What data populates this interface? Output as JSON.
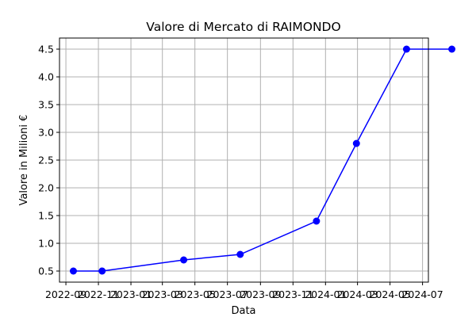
{
  "chart_data": {
    "type": "line",
    "title": "Valore di Mercato di RAIMONDO",
    "xlabel": "Data",
    "ylabel": "Valore in Milioni €",
    "x_ticks": [
      "2022-09",
      "2022-11",
      "2023-01",
      "2023-03",
      "2023-05",
      "2023-07",
      "2023-09",
      "2023-11",
      "2024-01",
      "2024-03",
      "2024-05",
      "2024-07"
    ],
    "y_ticks": [
      0.5,
      1.0,
      1.5,
      2.0,
      2.5,
      3.0,
      3.5,
      4.0,
      4.5
    ],
    "xlim": [
      "2022-08-20",
      "2024-07-12"
    ],
    "ylim": [
      0.3,
      4.7
    ],
    "grid": true,
    "series": [
      {
        "color": "#0000ff",
        "marker": "circle",
        "points": [
          {
            "x": "2022-09-15",
            "y": 0.5
          },
          {
            "x": "2022-11-08",
            "y": 0.5
          },
          {
            "x": "2023-04-10",
            "y": 0.7
          },
          {
            "x": "2023-07-25",
            "y": 0.8
          },
          {
            "x": "2023-12-15",
            "y": 1.4
          },
          {
            "x": "2024-02-28",
            "y": 2.8
          },
          {
            "x": "2024-06-01",
            "y": 4.5
          },
          {
            "x": "2024-08-25",
            "y": 4.5
          }
        ]
      }
    ]
  }
}
